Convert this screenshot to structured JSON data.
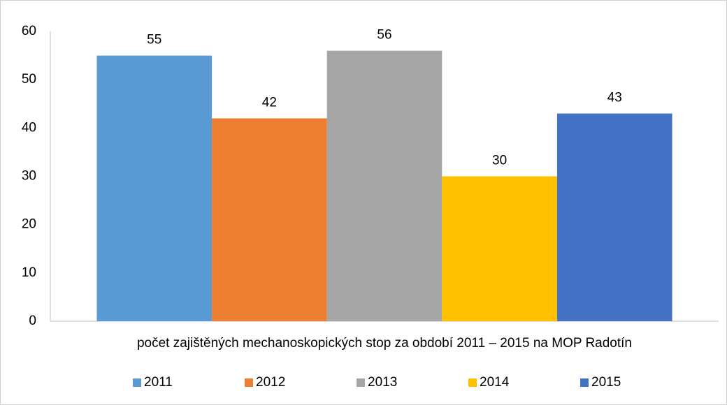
{
  "chart_data": {
    "type": "bar",
    "categories": [
      "počet zajištěných mechanoskopických stop za období 2011 – 2015 na MOP Radotín"
    ],
    "series": [
      {
        "name": "2011",
        "color": "#5b9bd5",
        "values": [
          55
        ]
      },
      {
        "name": "2012",
        "color": "#ed7d31",
        "values": [
          42
        ]
      },
      {
        "name": "2013",
        "color": "#a5a5a5",
        "values": [
          56
        ]
      },
      {
        "name": "2014",
        "color": "#ffc000",
        "values": [
          30
        ]
      },
      {
        "name": "2015",
        "color": "#4472c4",
        "values": [
          43
        ]
      }
    ],
    "ylim": [
      0,
      60
    ],
    "yticks": [
      0,
      10,
      20,
      30,
      40,
      50,
      60
    ],
    "grid": false,
    "legend": "bottom"
  }
}
